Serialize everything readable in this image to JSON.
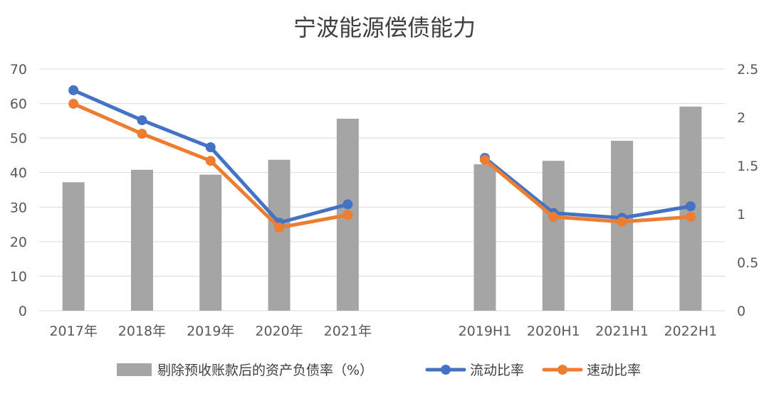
{
  "chart_data": {
    "type": "bar",
    "title": "宁波能源偿债能力",
    "categories": [
      "2017年",
      "2018年",
      "2019年",
      "2020年",
      "2021年",
      "",
      "2019H1",
      "2020H1",
      "2021H1",
      "2022H1"
    ],
    "left_axis": {
      "min": 0,
      "max": 70,
      "ticks": [
        "0",
        "10",
        "20",
        "30",
        "40",
        "50",
        "60",
        "70"
      ]
    },
    "right_axis": {
      "min": 0,
      "max": 2.5,
      "ticks": [
        "0",
        "0.5",
        "1",
        "1.5",
        "2",
        "2.5"
      ]
    },
    "grid": true,
    "legend_position": "bottom",
    "series": [
      {
        "name": "剔除预收账款后的资产负债率（%）",
        "type": "bar",
        "axis": "left",
        "color": "#a5a5a5",
        "values": [
          37.2,
          40.8,
          39.4,
          43.7,
          55.6,
          null,
          42.4,
          43.4,
          49.2,
          59.1
        ]
      },
      {
        "name": "流动比率",
        "type": "line",
        "axis": "right",
        "color": "#4472c4",
        "values": [
          2.28,
          1.97,
          1.69,
          0.91,
          1.1,
          null,
          1.58,
          1.01,
          0.96,
          1.08
        ]
      },
      {
        "name": "速动比率",
        "type": "line",
        "axis": "right",
        "color": "#ed7d31",
        "values": [
          2.14,
          1.83,
          1.55,
          0.86,
          0.99,
          null,
          1.56,
          0.97,
          0.92,
          0.97
        ]
      }
    ]
  }
}
